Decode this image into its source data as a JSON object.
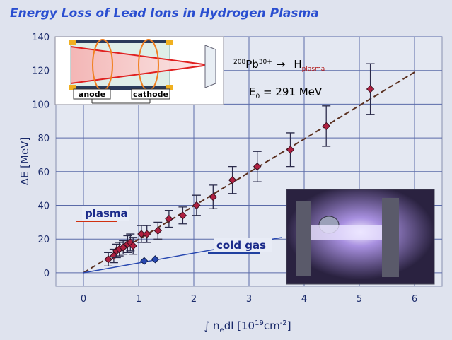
{
  "chart_data": {
    "type": "scatter",
    "title": "Energy Loss of Lead Ions in Hydrogen Plasma",
    "y_label": "ΔE  [MeV]",
    "x_label_parts": [
      "∫ n",
      "e",
      "dl [10",
      "19",
      "cm",
      "-2",
      "]"
    ],
    "xlim": [
      -0.5,
      6.5
    ],
    "ylim": [
      -8,
      140
    ],
    "xticks": [
      0,
      1,
      2,
      3,
      4,
      5,
      6
    ],
    "yticks": [
      0,
      20,
      40,
      60,
      80,
      100,
      120,
      140
    ],
    "grid": true,
    "series": [
      {
        "name": "plasma",
        "color": "#b02040",
        "x": [
          0.45,
          0.55,
          0.6,
          0.65,
          0.72,
          0.8,
          0.85,
          0.9,
          1.05,
          1.15,
          1.35,
          1.55,
          1.8,
          2.05,
          2.35,
          2.7,
          3.15,
          3.75,
          4.4,
          5.2
        ],
        "values": [
          8,
          10,
          13,
          14,
          15,
          17,
          18,
          16,
          23,
          23,
          25,
          32,
          34,
          40,
          45,
          55,
          63,
          73,
          87,
          109
        ],
        "errors": [
          4,
          4,
          4,
          4,
          4,
          5,
          5,
          5,
          5,
          5,
          5,
          5,
          5,
          6,
          7,
          8,
          9,
          10,
          12,
          15
        ],
        "fit": {
          "x": [
            0,
            6
          ],
          "y": [
            0,
            119
          ]
        }
      },
      {
        "name": "cold gas",
        "color": "#2848b0",
        "x": [
          1.1,
          1.3
        ],
        "values": [
          7,
          8
        ],
        "fit": {
          "x": [
            0,
            3.6
          ],
          "y": [
            0,
            21
          ]
        }
      }
    ],
    "inset_labels": {
      "anode": "anode",
      "cathode": "cathode"
    },
    "reaction": {
      "mass": "208",
      "ion": "Pb",
      "charge": "30+",
      "arrow": "→",
      "target": "H",
      "target_sub": "plasma"
    },
    "energy": {
      "symbol": "E",
      "sub": "0",
      "value": " = 291 MeV"
    }
  }
}
